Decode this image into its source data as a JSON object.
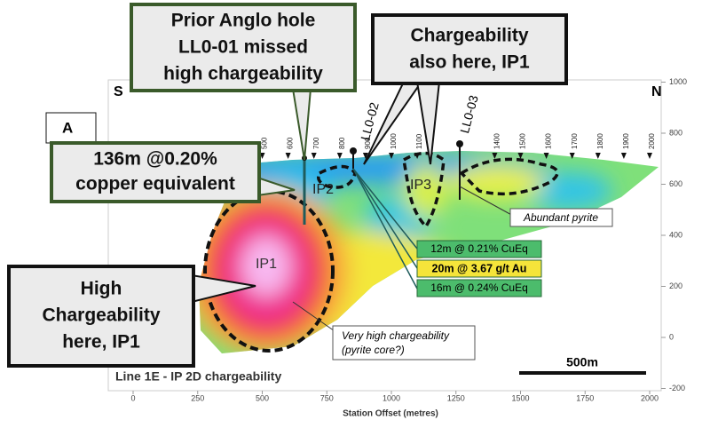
{
  "section": {
    "title": "Line 1E - IP 2D chargeability",
    "x_axis_label": "Station Offset (metres)",
    "x_ticks": [
      0,
      250,
      500,
      750,
      1000,
      1250,
      1500,
      1750,
      2000
    ],
    "y_ticks": [
      1000,
      800,
      600,
      400,
      200,
      0,
      -200
    ],
    "stations": [
      500,
      600,
      700,
      800,
      900,
      1000,
      1100,
      1400,
      1500,
      1600,
      1700,
      1800,
      1900,
      2000
    ],
    "compass": {
      "left": "S",
      "right": "N"
    },
    "panel_label": "A",
    "targets": [
      "IP1",
      "IP2",
      "IP3"
    ],
    "holes": [
      "LL0-02",
      "LL0-03"
    ],
    "scale_bar": "500m"
  },
  "callouts": [
    {
      "lines": [
        "Prior Anglo hole",
        "LL0-01 missed",
        "high chargeability"
      ]
    },
    {
      "lines": [
        "Chargeability",
        "also here, IP1"
      ]
    },
    {
      "lines": [
        "136m @0.20%",
        "copper equivalent"
      ]
    },
    {
      "lines": [
        "High",
        "Chargeability",
        "here, IP1"
      ]
    }
  ],
  "intercepts": [
    "12m @ 0.21% CuEq",
    "20m @ 3.67 g/t Au",
    "16m @ 0.24% CuEq"
  ],
  "notes": {
    "pyrite_core": [
      "Very high chargeability",
      "(pyrite core?)"
    ],
    "pyrite": "Abundant pyrite"
  }
}
